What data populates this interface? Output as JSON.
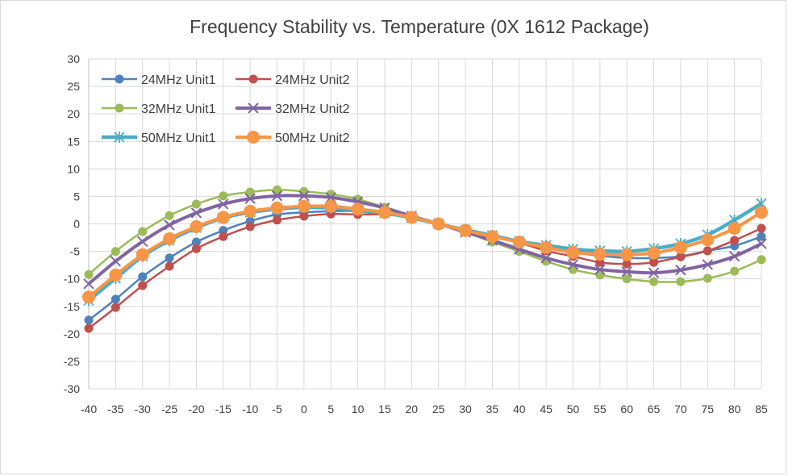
{
  "chart_data": {
    "type": "line",
    "title": "Frequency Stability vs. Temperature (0X 1612 Package)",
    "xlabel": "",
    "ylabel": "",
    "x": [
      -40,
      -35,
      -30,
      -25,
      -20,
      -15,
      -10,
      -5,
      0,
      5,
      10,
      15,
      20,
      25,
      30,
      35,
      40,
      45,
      50,
      55,
      60,
      65,
      70,
      75,
      80,
      85
    ],
    "ylim": [
      -30,
      30
    ],
    "yticks": [
      -30,
      -25,
      -20,
      -15,
      -10,
      -5,
      0,
      5,
      10,
      15,
      20,
      25,
      30
    ],
    "grid": true,
    "legend_placement": "top-left",
    "smooth": true,
    "series": [
      {
        "name": "24MHz Unit1",
        "color": "#4F81BD",
        "marker": "circle",
        "values": [
          -17.5,
          -13.7,
          -9.6,
          -6.2,
          -3.3,
          -1.2,
          0.5,
          1.7,
          2.1,
          2.3,
          2.3,
          1.8,
          1.1,
          0,
          -1.2,
          -2.3,
          -3.3,
          -4.3,
          -5.2,
          -5.8,
          -6.2,
          -6.2,
          -5.9,
          -4.9,
          -4.0,
          -2.3
        ]
      },
      {
        "name": "24MHz Unit2",
        "color": "#C0504D",
        "marker": "circle",
        "values": [
          -19,
          -15.2,
          -11.2,
          -7.7,
          -4.5,
          -2.3,
          -0.5,
          0.7,
          1.4,
          1.8,
          1.7,
          1.7,
          1.1,
          0,
          -1.2,
          -2.3,
          -3.4,
          -4.9,
          -5.9,
          -7,
          -7.3,
          -7,
          -6,
          -4.9,
          -3,
          -0.8
        ]
      },
      {
        "name": "32MHz Unit1",
        "color": "#9BBB59",
        "marker": "circle",
        "values": [
          -9.2,
          -5,
          -1.4,
          1.5,
          3.6,
          5.1,
          5.8,
          6.2,
          5.9,
          5.4,
          4.5,
          3,
          1.4,
          0,
          -1.5,
          -3.3,
          -5,
          -6.8,
          -8.3,
          -9.3,
          -10,
          -10.5,
          -10.5,
          -9.9,
          -8.6,
          -6.5
        ]
      },
      {
        "name": "32MHz Unit2",
        "color": "#8064A2",
        "marker": "x",
        "values": [
          -10.9,
          -6.8,
          -3.2,
          -0.2,
          2,
          3.6,
          4.6,
          5.1,
          5.1,
          4.8,
          4,
          2.9,
          1.4,
          0,
          -1.5,
          -3,
          -4.6,
          -6.2,
          -7.4,
          -8.3,
          -8.7,
          -8.9,
          -8.4,
          -7.4,
          -5.9,
          -3.6
        ]
      },
      {
        "name": "50MHz Unit1",
        "color": "#4BACC6",
        "marker": "asterisk",
        "values": [
          -13.9,
          -9.9,
          -5.9,
          -3,
          -0.7,
          1.1,
          2.1,
          2.7,
          3,
          2.9,
          2.4,
          2,
          1.1,
          0,
          -1.1,
          -2.1,
          -3.2,
          -3.9,
          -4.6,
          -4.9,
          -5,
          -4.5,
          -3.6,
          -2,
          0.7,
          3.7
        ]
      },
      {
        "name": "50MHz Unit2",
        "color": "#F79646",
        "marker": "big-circle",
        "values": [
          -13.3,
          -9.3,
          -5.6,
          -2.7,
          -0.5,
          1.2,
          2.3,
          2.9,
          3.2,
          3.2,
          2.7,
          2.1,
          1.2,
          0,
          -1.2,
          -2.3,
          -3.3,
          -4.3,
          -5.2,
          -5.5,
          -5.6,
          -5.3,
          -4.3,
          -2.9,
          -0.8,
          2.1
        ]
      }
    ]
  }
}
